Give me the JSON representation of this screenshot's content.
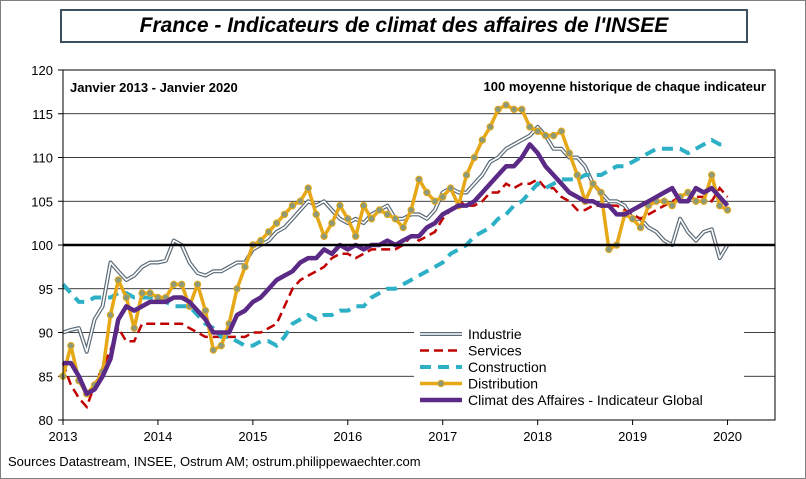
{
  "header": {
    "title": "France - Indicateurs de climat des affaires de l'INSEE"
  },
  "footer": {
    "source": "Sources Datastream, INSEE, Ostrum AM; ostrum.philippewaechter.com"
  },
  "chart_data": {
    "type": "line",
    "title": "France - Indicateurs de climat des affaires de l'INSEE",
    "annotations": [
      "Janvier 2013 - Janvier 2020",
      "100 moyenne historique  de chaque indicateur"
    ],
    "xlabel": "",
    "ylabel": "",
    "ylim": [
      80,
      120
    ],
    "yticks": [
      80,
      85,
      90,
      95,
      100,
      105,
      110,
      115,
      120
    ],
    "xlim": [
      2013,
      2020.5
    ],
    "xticks": [
      "2013",
      "2014",
      "2015",
      "2016",
      "2017",
      "2018",
      "2019",
      "2020"
    ],
    "reference_line": 100,
    "grid": "horizontal",
    "legend_position": "bottom-right",
    "series": [
      {
        "name": "Industrie",
        "color": "#5b6b78",
        "style": "double",
        "x": [
          2013.0,
          2013.083,
          2013.167,
          2013.25,
          2013.333,
          2013.417,
          2013.5,
          2013.583,
          2013.667,
          2013.75,
          2013.833,
          2013.917,
          2014.0,
          2014.083,
          2014.167,
          2014.25,
          2014.333,
          2014.417,
          2014.5,
          2014.583,
          2014.667,
          2014.75,
          2014.833,
          2014.917,
          2015.0,
          2015.083,
          2015.167,
          2015.25,
          2015.333,
          2015.417,
          2015.5,
          2015.583,
          2015.667,
          2015.75,
          2015.833,
          2015.917,
          2016.0,
          2016.083,
          2016.167,
          2016.25,
          2016.333,
          2016.417,
          2016.5,
          2016.583,
          2016.667,
          2016.75,
          2016.833,
          2016.917,
          2017.0,
          2017.083,
          2017.167,
          2017.25,
          2017.333,
          2017.417,
          2017.5,
          2017.583,
          2017.667,
          2017.75,
          2017.833,
          2017.917,
          2018.0,
          2018.083,
          2018.167,
          2018.25,
          2018.333,
          2018.417,
          2018.5,
          2018.583,
          2018.667,
          2018.75,
          2018.833,
          2018.917,
          2019.0,
          2019.083,
          2019.167,
          2019.25,
          2019.333,
          2019.417,
          2019.5,
          2019.583,
          2019.667,
          2019.75,
          2019.833,
          2019.917,
          2020.0
        ],
        "values": [
          90,
          90.3,
          90.5,
          87.8,
          91.5,
          93,
          98,
          97,
          96,
          96.5,
          97.5,
          98,
          98,
          98.2,
          100.5,
          100,
          98,
          96.8,
          96.5,
          97,
          97,
          97.5,
          98,
          98,
          99.5,
          100,
          100.5,
          101.5,
          102,
          103,
          104,
          105,
          104.5,
          105,
          104,
          103,
          102.5,
          103,
          102.5,
          103.5,
          104,
          104.5,
          103,
          103,
          103.5,
          103.5,
          103,
          104,
          106,
          106.5,
          106,
          106,
          107,
          108,
          109.5,
          110,
          111,
          111.5,
          112,
          112.5,
          113.5,
          112.5,
          111,
          111,
          110,
          110,
          109,
          107,
          106,
          105,
          105,
          104.5,
          103,
          103,
          102,
          101.5,
          100.5,
          100,
          103,
          101.5,
          100.5,
          101.5,
          101.8,
          98.5,
          100
        ]
      },
      {
        "name": "Services",
        "color": "#c00000",
        "style": "dashed",
        "x": [
          2013.0,
          2013.083,
          2013.167,
          2013.25,
          2013.333,
          2013.417,
          2013.5,
          2013.583,
          2013.667,
          2013.75,
          2013.833,
          2013.917,
          2014.0,
          2014.083,
          2014.167,
          2014.25,
          2014.333,
          2014.417,
          2014.5,
          2014.583,
          2014.667,
          2014.75,
          2014.833,
          2014.917,
          2015.0,
          2015.083,
          2015.167,
          2015.25,
          2015.333,
          2015.417,
          2015.5,
          2015.583,
          2015.667,
          2015.75,
          2015.833,
          2015.917,
          2016.0,
          2016.083,
          2016.167,
          2016.25,
          2016.333,
          2016.417,
          2016.5,
          2016.583,
          2016.667,
          2016.75,
          2016.833,
          2016.917,
          2017.0,
          2017.083,
          2017.167,
          2017.25,
          2017.333,
          2017.417,
          2017.5,
          2017.583,
          2017.667,
          2017.75,
          2017.833,
          2017.917,
          2018.0,
          2018.083,
          2018.167,
          2018.25,
          2018.333,
          2018.417,
          2018.5,
          2018.583,
          2018.667,
          2018.75,
          2018.833,
          2018.917,
          2019.0,
          2019.083,
          2019.167,
          2019.25,
          2019.333,
          2019.417,
          2019.5,
          2019.583,
          2019.667,
          2019.75,
          2019.833,
          2019.917,
          2020.0
        ],
        "values": [
          86.5,
          84,
          82.5,
          81.5,
          84,
          86,
          88,
          90.5,
          89,
          89,
          91,
          91,
          91,
          91,
          91,
          91,
          90.5,
          90,
          89.5,
          89.5,
          89.5,
          89.5,
          89.5,
          89.5,
          90,
          90,
          90.5,
          91,
          93,
          95,
          96,
          96.5,
          97,
          97.5,
          98.5,
          99,
          99,
          98.5,
          99,
          99.5,
          99.5,
          99.5,
          99.5,
          100,
          101,
          100.5,
          101,
          101.5,
          103,
          104,
          105,
          104.5,
          104.5,
          105,
          106,
          106,
          107,
          106.5,
          107,
          107,
          107.5,
          106.5,
          106.5,
          105.5,
          105,
          104,
          104,
          104.5,
          104.5,
          104.5,
          104.5,
          104,
          103.5,
          103,
          103.5,
          104,
          104.5,
          105,
          105.5,
          106,
          105.5,
          105.5,
          105,
          106.5,
          105.5
        ]
      },
      {
        "name": "Construction",
        "color": "#2db0c6",
        "style": "dashed",
        "x": [
          2013.0,
          2013.083,
          2013.167,
          2013.25,
          2013.333,
          2013.417,
          2013.5,
          2013.583,
          2013.667,
          2013.75,
          2013.833,
          2013.917,
          2014.0,
          2014.083,
          2014.167,
          2014.25,
          2014.333,
          2014.417,
          2014.5,
          2014.583,
          2014.667,
          2014.75,
          2014.833,
          2014.917,
          2015.0,
          2015.083,
          2015.167,
          2015.25,
          2015.333,
          2015.417,
          2015.5,
          2015.583,
          2015.667,
          2015.75,
          2015.833,
          2015.917,
          2016.0,
          2016.083,
          2016.167,
          2016.25,
          2016.333,
          2016.417,
          2016.5,
          2016.583,
          2016.667,
          2016.75,
          2016.833,
          2016.917,
          2017.0,
          2017.083,
          2017.167,
          2017.25,
          2017.333,
          2017.417,
          2017.5,
          2017.583,
          2017.667,
          2017.75,
          2017.833,
          2017.917,
          2018.0,
          2018.083,
          2018.167,
          2018.25,
          2018.333,
          2018.417,
          2018.5,
          2018.583,
          2018.667,
          2018.75,
          2018.833,
          2018.917,
          2019.0,
          2019.083,
          2019.167,
          2019.25,
          2019.333,
          2019.417,
          2019.5,
          2019.583,
          2019.667,
          2019.75,
          2019.833,
          2019.917,
          2020.0
        ],
        "values": [
          95.5,
          94.5,
          93.5,
          93.5,
          94,
          94,
          94,
          94.5,
          94.5,
          94,
          94,
          94,
          94,
          93.5,
          93,
          93,
          93,
          92,
          91,
          90.5,
          89.5,
          89.5,
          89,
          88.5,
          88.5,
          89,
          89,
          88.5,
          89.5,
          91,
          91.5,
          92,
          91.5,
          92,
          92,
          92.5,
          92.5,
          93,
          93,
          94,
          94.5,
          95,
          95,
          95.5,
          96,
          96.5,
          97,
          97.5,
          98,
          99,
          99.5,
          100,
          101,
          101.5,
          102,
          103,
          103.5,
          104.5,
          105,
          106,
          107,
          106.5,
          107,
          107.5,
          107.5,
          107.5,
          108,
          108,
          108,
          108.5,
          109,
          109,
          109.5,
          110,
          110.5,
          111,
          111,
          111,
          111,
          110.5,
          111,
          111.5,
          112,
          111.5,
          111.5
        ]
      },
      {
        "name": "Distribution",
        "color": "#e6a817",
        "style": "solid-markers",
        "x": [
          2013.0,
          2013.083,
          2013.167,
          2013.25,
          2013.333,
          2013.417,
          2013.5,
          2013.583,
          2013.667,
          2013.75,
          2013.833,
          2013.917,
          2014.0,
          2014.083,
          2014.167,
          2014.25,
          2014.333,
          2014.417,
          2014.5,
          2014.583,
          2014.667,
          2014.75,
          2014.833,
          2014.917,
          2015.0,
          2015.083,
          2015.167,
          2015.25,
          2015.333,
          2015.417,
          2015.5,
          2015.583,
          2015.667,
          2015.75,
          2015.833,
          2015.917,
          2016.0,
          2016.083,
          2016.167,
          2016.25,
          2016.333,
          2016.417,
          2016.5,
          2016.583,
          2016.667,
          2016.75,
          2016.833,
          2016.917,
          2017.0,
          2017.083,
          2017.167,
          2017.25,
          2017.333,
          2017.417,
          2017.5,
          2017.583,
          2017.667,
          2017.75,
          2017.833,
          2017.917,
          2018.0,
          2018.083,
          2018.167,
          2018.25,
          2018.333,
          2018.417,
          2018.5,
          2018.583,
          2018.667,
          2018.75,
          2018.833,
          2018.917,
          2019.0,
          2019.083,
          2019.167,
          2019.25,
          2019.333,
          2019.417,
          2019.5,
          2019.583,
          2019.667,
          2019.75,
          2019.833,
          2019.917,
          2020.0
        ],
        "values": [
          85,
          88.5,
          84.5,
          83,
          84,
          85.5,
          92,
          96,
          94,
          90.5,
          94.5,
          94.5,
          94,
          94,
          95.5,
          95.5,
          93,
          95.5,
          92.5,
          88,
          88.5,
          91,
          95,
          97.5,
          100,
          100.5,
          101.5,
          102.5,
          103.5,
          104.5,
          105,
          106.5,
          103.5,
          101,
          102.5,
          104.5,
          103,
          101,
          104.5,
          103,
          104,
          103.5,
          103,
          102,
          104,
          107.5,
          106,
          105,
          105.5,
          106.5,
          104.5,
          108,
          110,
          112,
          113.5,
          115.5,
          116,
          115.5,
          115.5,
          113.5,
          113,
          112.5,
          112.5,
          113,
          110.5,
          108,
          105,
          107,
          106,
          99.5,
          100,
          103.5,
          103,
          102,
          104.5,
          105,
          105,
          104.5,
          105.5,
          106,
          105,
          105,
          108,
          104.5,
          104
        ]
      },
      {
        "name": "Climat des Affaires - Indicateur Global",
        "color": "#5b2a86",
        "style": "thick",
        "x": [
          2013.0,
          2013.083,
          2013.167,
          2013.25,
          2013.333,
          2013.417,
          2013.5,
          2013.583,
          2013.667,
          2013.75,
          2013.833,
          2013.917,
          2014.0,
          2014.083,
          2014.167,
          2014.25,
          2014.333,
          2014.417,
          2014.5,
          2014.583,
          2014.667,
          2014.75,
          2014.833,
          2014.917,
          2015.0,
          2015.083,
          2015.167,
          2015.25,
          2015.333,
          2015.417,
          2015.5,
          2015.583,
          2015.667,
          2015.75,
          2015.833,
          2015.917,
          2016.0,
          2016.083,
          2016.167,
          2016.25,
          2016.333,
          2016.417,
          2016.5,
          2016.583,
          2016.667,
          2016.75,
          2016.833,
          2016.917,
          2017.0,
          2017.083,
          2017.167,
          2017.25,
          2017.333,
          2017.417,
          2017.5,
          2017.583,
          2017.667,
          2017.75,
          2017.833,
          2017.917,
          2018.0,
          2018.083,
          2018.167,
          2018.25,
          2018.333,
          2018.417,
          2018.5,
          2018.583,
          2018.667,
          2018.75,
          2018.833,
          2018.917,
          2019.0,
          2019.083,
          2019.167,
          2019.25,
          2019.333,
          2019.417,
          2019.5,
          2019.583,
          2019.667,
          2019.75,
          2019.833,
          2019.917,
          2020.0
        ],
        "values": [
          86.5,
          86.5,
          85,
          83,
          83.5,
          85,
          87,
          91.5,
          93,
          92.5,
          93,
          93.5,
          93.5,
          93.5,
          94,
          94,
          93.5,
          92.5,
          91.5,
          90,
          90,
          90,
          92,
          92.5,
          93.5,
          94,
          95,
          96,
          96.5,
          97,
          98,
          98.5,
          98.5,
          99.5,
          99,
          100,
          99.5,
          100,
          99.5,
          100,
          100,
          100.5,
          100,
          100.5,
          101,
          101,
          102,
          102.5,
          103.5,
          104,
          104.5,
          104.5,
          105,
          106,
          107,
          108,
          109,
          109,
          110,
          111.5,
          110.5,
          109,
          108,
          107,
          106,
          105.5,
          105,
          105,
          104.5,
          104.5,
          103.5,
          103.5,
          104,
          104.5,
          105,
          105.5,
          106,
          106.5,
          105,
          105,
          106.5,
          106,
          106.5,
          105.5,
          104.5
        ]
      }
    ]
  }
}
